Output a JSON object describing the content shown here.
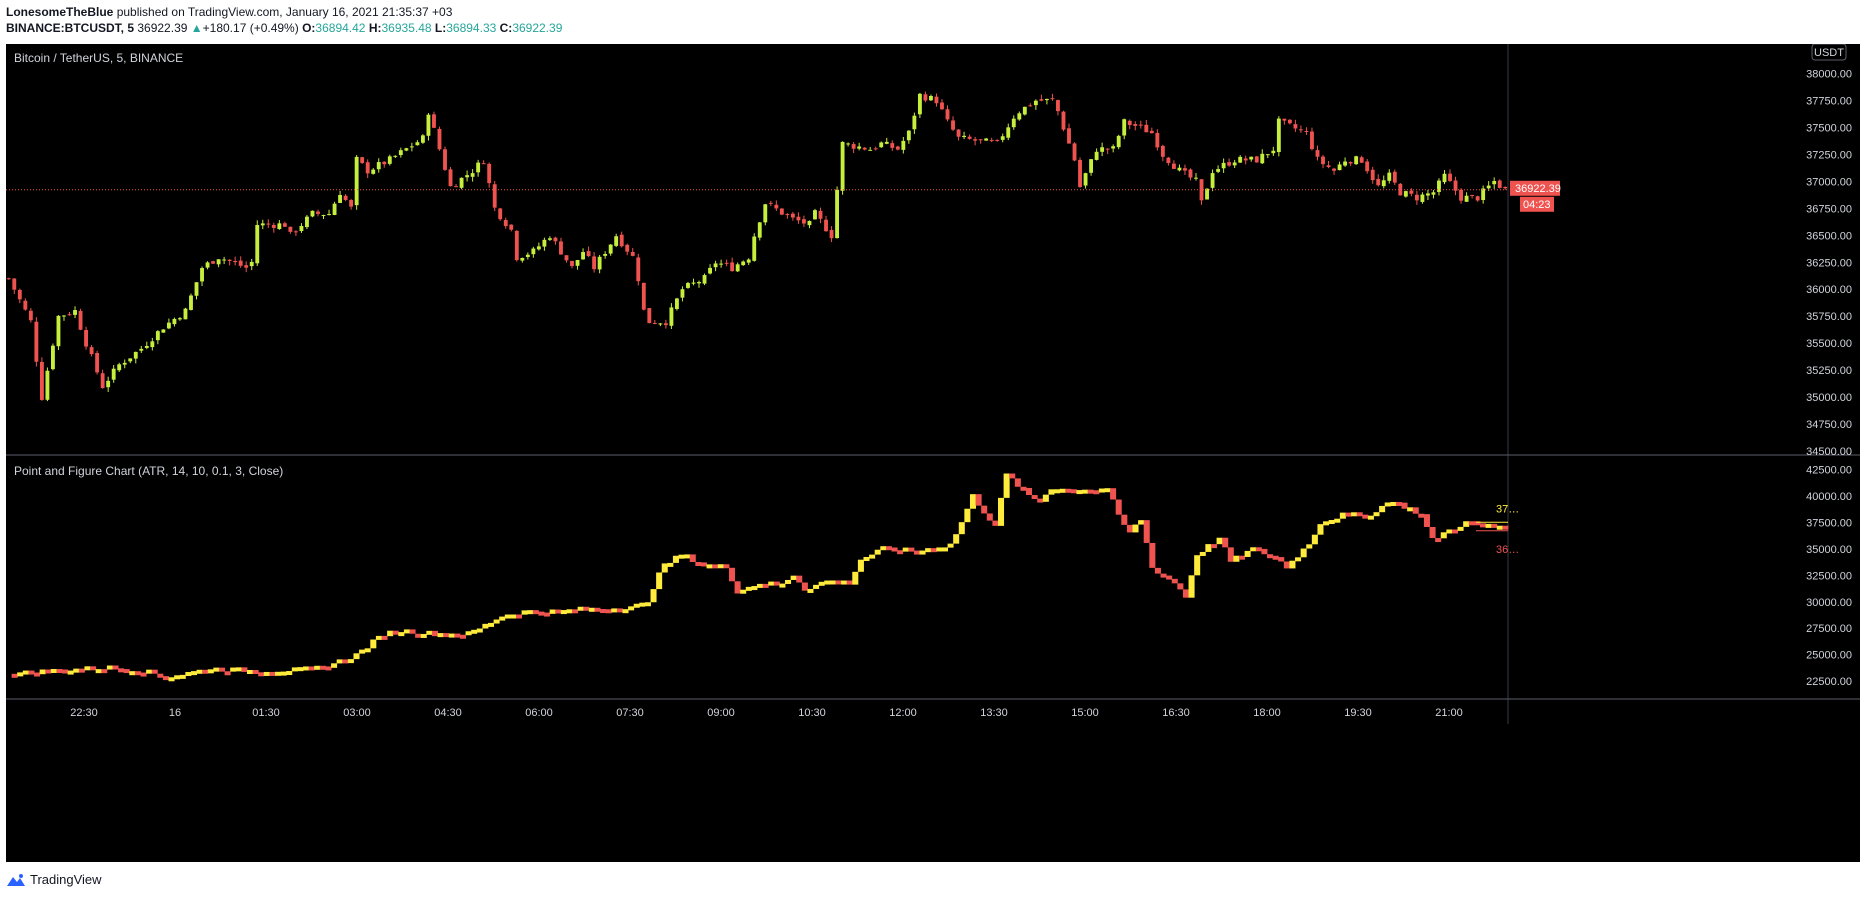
{
  "header": {
    "author": "LonesomeTheBlue",
    "published": "published on TradingView.com, January 16, 2021 21:35:37 +03",
    "symbol": "BINANCE:BTCUSDT, 5",
    "last": "36922.39",
    "change_arrow": "▲",
    "change": "+180.17 (+0.49%)",
    "o_label": "O:",
    "o": "36894.42",
    "h_label": "H:",
    "h": "36935.48",
    "l_label": "L:",
    "l": "36894.33",
    "c_label": "C:",
    "c": "36922.39"
  },
  "colors": {
    "background": "#000000",
    "bull": "#c6ef3d",
    "bear": "#ef5350",
    "pf_up": "#ffeb3b",
    "pf_down": "#ef5350",
    "last_price": "#ef5350",
    "axis_text": "#d1d4dc"
  },
  "footer": {
    "brand": "TradingView",
    "logo_icon": "tradingview-logo-icon"
  },
  "chart_data": [
    {
      "type": "candlestick",
      "title": "Bitcoin / TetherUS, 5, BINANCE",
      "currency": "USDT",
      "ylim": [
        34500,
        38200
      ],
      "y_ticks": [
        "38000.00",
        "37750.00",
        "37500.00",
        "37250.00",
        "37000.00",
        "36750.00",
        "36500.00",
        "36250.00",
        "36000.00",
        "35750.00",
        "35500.00",
        "35250.00",
        "35000.00",
        "34750.00",
        "34500.00"
      ],
      "x_ticks": [
        "22:30",
        "16",
        "01:30",
        "03:00",
        "04:30",
        "06:00",
        "07:30",
        "09:00",
        "10:30",
        "12:00",
        "13:30",
        "15:00",
        "16:30",
        "18:00",
        "19:30",
        "21:00"
      ],
      "last_price": 36922.39,
      "countdown": "04:23",
      "close_path": [
        [
          0,
          36100
        ],
        [
          4,
          35700
        ],
        [
          6,
          35000
        ],
        [
          9,
          35750
        ],
        [
          12,
          35800
        ],
        [
          14,
          35500
        ],
        [
          17,
          35100
        ],
        [
          20,
          35300
        ],
        [
          24,
          35450
        ],
        [
          28,
          35650
        ],
        [
          32,
          35800
        ],
        [
          35,
          36200
        ],
        [
          38,
          36300
        ],
        [
          43,
          36200
        ],
        [
          44,
          36250
        ],
        [
          45,
          36600
        ],
        [
          50,
          36600
        ],
        [
          51,
          36500
        ],
        [
          55,
          36700
        ],
        [
          58,
          36700
        ],
        [
          60,
          36900
        ],
        [
          62,
          36750
        ],
        [
          63,
          37200
        ],
        [
          65,
          37100
        ],
        [
          69,
          37200
        ],
        [
          72,
          37300
        ],
        [
          75,
          37400
        ],
        [
          76,
          37650
        ],
        [
          78,
          37300
        ],
        [
          80,
          36950
        ],
        [
          84,
          37100
        ],
        [
          86,
          37200
        ],
        [
          88,
          36750
        ],
        [
          91,
          36550
        ],
        [
          92,
          36300
        ],
        [
          95,
          36350
        ],
        [
          98,
          36500
        ],
        [
          102,
          36200
        ],
        [
          104,
          36350
        ],
        [
          106,
          36200
        ],
        [
          110,
          36500
        ],
        [
          113,
          36300
        ],
        [
          114,
          36100
        ],
        [
          115,
          35800
        ],
        [
          116,
          35700
        ],
        [
          119,
          35700
        ],
        [
          121,
          35900
        ],
        [
          122,
          36000
        ],
        [
          126,
          36100
        ],
        [
          128,
          36250
        ],
        [
          131,
          36200
        ],
        [
          134,
          36300
        ],
        [
          135,
          36500
        ],
        [
          137,
          36800
        ],
        [
          142,
          36650
        ],
        [
          145,
          36600
        ],
        [
          146,
          36700
        ],
        [
          149,
          36500
        ],
        [
          151,
          37350
        ],
        [
          156,
          37300
        ],
        [
          158,
          37350
        ],
        [
          161,
          37300
        ],
        [
          163,
          37450
        ],
        [
          165,
          37800
        ],
        [
          168,
          37750
        ],
        [
          170,
          37550
        ],
        [
          172,
          37400
        ],
        [
          179,
          37350
        ],
        [
          182,
          37600
        ],
        [
          183,
          37650
        ],
        [
          186,
          37750
        ],
        [
          189,
          37750
        ],
        [
          190,
          37650
        ],
        [
          193,
          37200
        ],
        [
          194,
          36950
        ],
        [
          197,
          37300
        ],
        [
          200,
          37300
        ],
        [
          202,
          37550
        ],
        [
          205,
          37500
        ],
        [
          207,
          37450
        ],
        [
          209,
          37250
        ],
        [
          212,
          37100
        ],
        [
          215,
          37000
        ],
        [
          216,
          36800
        ],
        [
          218,
          37100
        ],
        [
          222,
          37200
        ],
        [
          226,
          37200
        ],
        [
          229,
          37300
        ],
        [
          230,
          37550
        ],
        [
          235,
          37450
        ],
        [
          237,
          37200
        ],
        [
          240,
          37100
        ],
        [
          242,
          37200
        ],
        [
          245,
          37200
        ],
        [
          248,
          36950
        ],
        [
          250,
          37050
        ],
        [
          252,
          36900
        ],
        [
          255,
          36850
        ],
        [
          258,
          36900
        ],
        [
          260,
          37050
        ],
        [
          263,
          36850
        ],
        [
          266,
          36850
        ],
        [
          269,
          37000
        ],
        [
          271,
          36922
        ]
      ]
    },
    {
      "type": "bar",
      "title": "Point and Figure Chart (ATR, 14, 10, 0.1, 3, Close)",
      "ylim": [
        21200,
        43000
      ],
      "y_ticks": [
        "42500.00",
        "40000.00",
        "37500.00",
        "35000.00",
        "32500.00",
        "30000.00",
        "27500.00",
        "25000.00",
        "22500.00"
      ],
      "right_labels": [
        "37…",
        "36…"
      ],
      "level_path": [
        [
          0,
          23200
        ],
        [
          10,
          23600
        ],
        [
          18,
          23800
        ],
        [
          24,
          23500
        ],
        [
          28,
          22900
        ],
        [
          32,
          23300
        ],
        [
          36,
          23700
        ],
        [
          44,
          23500
        ],
        [
          52,
          23600
        ],
        [
          56,
          23800
        ],
        [
          62,
          25000
        ],
        [
          67,
          27000
        ],
        [
          70,
          27300
        ],
        [
          76,
          27000
        ],
        [
          82,
          27000
        ],
        [
          84,
          27500
        ],
        [
          88,
          28700
        ],
        [
          92,
          29100
        ],
        [
          98,
          29100
        ],
        [
          102,
          29300
        ],
        [
          108,
          29400
        ],
        [
          114,
          29800
        ],
        [
          116,
          33000
        ],
        [
          120,
          34500
        ],
        [
          124,
          33500
        ],
        [
          128,
          33300
        ],
        [
          130,
          31000
        ],
        [
          134,
          31800
        ],
        [
          138,
          31600
        ],
        [
          140,
          32600
        ],
        [
          142,
          31200
        ],
        [
          146,
          32000
        ],
        [
          150,
          31800
        ],
        [
          152,
          34000
        ],
        [
          156,
          35000
        ],
        [
          162,
          34800
        ],
        [
          168,
          35400
        ],
        [
          170,
          37500
        ],
        [
          172,
          40000
        ],
        [
          174,
          38500
        ],
        [
          176,
          37200
        ],
        [
          178,
          42000
        ],
        [
          182,
          40000
        ],
        [
          184,
          39500
        ],
        [
          186,
          40800
        ],
        [
          190,
          40500
        ],
        [
          192,
          40700
        ],
        [
          194,
          40500
        ],
        [
          196,
          40800
        ],
        [
          198,
          38000
        ],
        [
          200,
          36500
        ],
        [
          202,
          37800
        ],
        [
          204,
          33200
        ],
        [
          208,
          31800
        ],
        [
          210,
          30500
        ],
        [
          212,
          34500
        ],
        [
          216,
          36000
        ],
        [
          218,
          33800
        ],
        [
          222,
          35000
        ],
        [
          226,
          34200
        ],
        [
          228,
          33300
        ],
        [
          232,
          35500
        ],
        [
          234,
          37500
        ],
        [
          238,
          38200
        ],
        [
          242,
          38200
        ],
        [
          244,
          38400
        ],
        [
          246,
          39600
        ],
        [
          250,
          38800
        ],
        [
          252,
          38200
        ],
        [
          254,
          35800
        ],
        [
          256,
          36500
        ],
        [
          260,
          37500
        ],
        [
          264,
          37200
        ],
        [
          266,
          37200
        ]
      ]
    }
  ]
}
